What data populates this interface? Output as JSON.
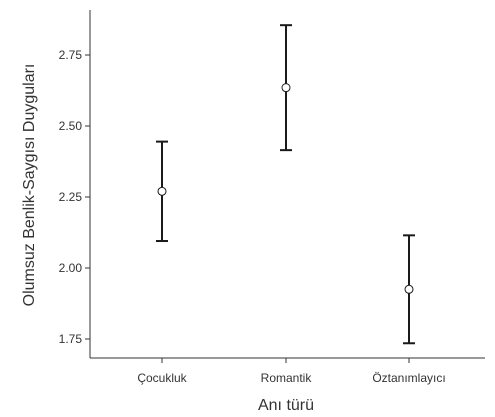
{
  "chart_data": {
    "type": "scatter",
    "xlabel": "Anı türü",
    "ylabel": "Olumsuz Benlik-Saygısı Duyguları",
    "categories": [
      "Çocukluk",
      "Romantik",
      "Öztanımlayıcı"
    ],
    "series": [
      {
        "values": [
          2.27,
          2.635,
          1.925
        ],
        "lower": [
          2.095,
          2.415,
          1.735
        ],
        "upper": [
          2.445,
          2.855,
          2.115
        ]
      }
    ],
    "yticks": [
      "1.75",
      "2.00",
      "2.25",
      "2.50",
      "2.75"
    ],
    "ylim": [
      1.7,
      2.95
    ],
    "grid": false,
    "legend": "none",
    "colors": {
      "axis": "#333333",
      "errorbar": "#1a1a1a",
      "marker_fill": "#ffffff"
    }
  }
}
